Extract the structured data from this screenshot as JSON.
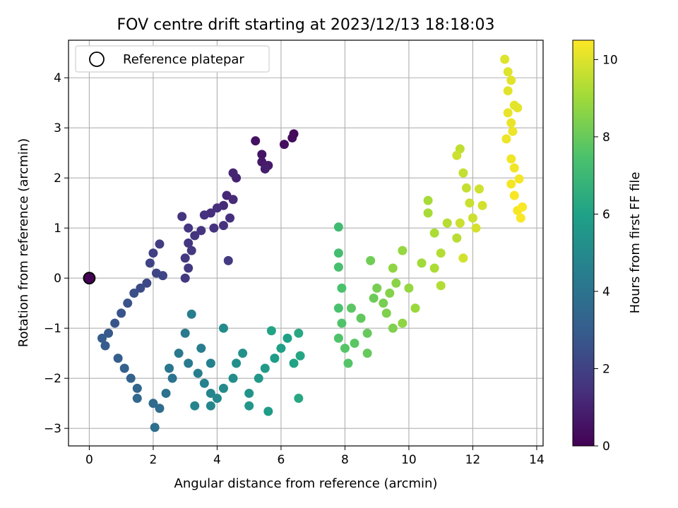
{
  "chart_data": {
    "type": "scatter",
    "title": "FOV centre drift starting at 2023/12/13 18:18:03",
    "xlabel": "Angular distance from reference (arcmin)",
    "ylabel": "Rotation from reference (arcmin)",
    "xlim": [
      -0.65,
      14.2
    ],
    "ylim": [
      -3.35,
      4.75
    ],
    "xticks": [
      0,
      2,
      4,
      6,
      8,
      10,
      12,
      14
    ],
    "yticks": [
      -3,
      -2,
      -1,
      0,
      1,
      2,
      3,
      4
    ],
    "grid": true,
    "colormap": "viridis",
    "colorbar": {
      "label": "Hours from first FF file",
      "range": [
        0,
        10.5
      ],
      "ticks": [
        0,
        2,
        4,
        6,
        8,
        10
      ]
    },
    "legend": {
      "position": "top-left",
      "entries": [
        "Reference platepar"
      ]
    },
    "reference_point": {
      "label": "Reference platepar",
      "x": 0,
      "y": 0
    },
    "series": [
      {
        "color_by": "hours",
        "points": [
          [
            0.0,
            0.0,
            0.1
          ],
          [
            6.4,
            2.88,
            0.2
          ],
          [
            6.35,
            2.8,
            0.3
          ],
          [
            6.1,
            2.67,
            0.4
          ],
          [
            5.2,
            2.74,
            0.5
          ],
          [
            5.4,
            2.47,
            0.6
          ],
          [
            5.4,
            2.32,
            0.7
          ],
          [
            5.6,
            2.25,
            0.8
          ],
          [
            5.5,
            2.18,
            0.9
          ],
          [
            4.6,
            2.0,
            1.0
          ],
          [
            4.5,
            2.1,
            1.1
          ],
          [
            4.3,
            1.65,
            1.2
          ],
          [
            4.5,
            1.57,
            1.3
          ],
          [
            4.2,
            1.45,
            1.3
          ],
          [
            4.0,
            1.4,
            1.4
          ],
          [
            3.8,
            1.3,
            1.4
          ],
          [
            4.4,
            1.2,
            1.45
          ],
          [
            4.2,
            1.05,
            1.5
          ],
          [
            3.6,
            1.26,
            1.5
          ],
          [
            3.9,
            1.0,
            1.55
          ],
          [
            3.5,
            0.95,
            1.6
          ],
          [
            3.3,
            0.85,
            1.6
          ],
          [
            3.1,
            0.7,
            1.65
          ],
          [
            3.2,
            0.55,
            1.7
          ],
          [
            3.0,
            0.4,
            1.7
          ],
          [
            3.1,
            0.2,
            1.75
          ],
          [
            3.0,
            0.0,
            1.8
          ],
          [
            2.9,
            1.23,
            1.6
          ],
          [
            3.1,
            1.0,
            1.65
          ],
          [
            4.35,
            0.35,
            1.8
          ],
          [
            2.2,
            0.68,
            1.9
          ],
          [
            2.0,
            0.5,
            2.0
          ],
          [
            1.9,
            0.3,
            2.1
          ],
          [
            2.1,
            0.1,
            2.2
          ],
          [
            2.3,
            0.05,
            2.2
          ],
          [
            1.8,
            -0.1,
            2.3
          ],
          [
            1.6,
            -0.2,
            2.4
          ],
          [
            1.4,
            -0.3,
            2.5
          ],
          [
            1.2,
            -0.5,
            2.6
          ],
          [
            1.0,
            -0.7,
            2.7
          ],
          [
            0.8,
            -0.9,
            2.8
          ],
          [
            0.6,
            -1.1,
            2.9
          ],
          [
            0.4,
            -1.2,
            3.0
          ],
          [
            0.5,
            -1.35,
            3.0
          ],
          [
            0.9,
            -1.6,
            3.1
          ],
          [
            1.1,
            -1.8,
            3.2
          ],
          [
            1.3,
            -2.0,
            3.3
          ],
          [
            1.5,
            -2.2,
            3.4
          ],
          [
            1.5,
            -2.4,
            3.5
          ],
          [
            2.0,
            -2.5,
            3.6
          ],
          [
            2.2,
            -2.6,
            3.7
          ],
          [
            2.05,
            -2.98,
            3.8
          ],
          [
            2.4,
            -2.3,
            3.9
          ],
          [
            2.6,
            -2.0,
            4.0
          ],
          [
            2.5,
            -1.8,
            4.1
          ],
          [
            2.8,
            -1.5,
            4.2
          ],
          [
            3.1,
            -1.7,
            4.3
          ],
          [
            3.0,
            -1.1,
            4.3
          ],
          [
            3.2,
            -0.72,
            4.4
          ],
          [
            3.4,
            -1.9,
            4.5
          ],
          [
            3.6,
            -2.1,
            4.6
          ],
          [
            3.8,
            -2.3,
            4.7
          ],
          [
            3.3,
            -2.55,
            4.7
          ],
          [
            3.8,
            -2.55,
            4.8
          ],
          [
            4.0,
            -2.4,
            4.9
          ],
          [
            4.2,
            -2.2,
            5.0
          ],
          [
            4.5,
            -2.0,
            5.1
          ],
          [
            4.6,
            -1.7,
            5.2
          ],
          [
            4.8,
            -1.5,
            5.3
          ],
          [
            5.0,
            -2.3,
            5.4
          ],
          [
            5.0,
            -2.55,
            5.5
          ],
          [
            5.3,
            -2.0,
            5.6
          ],
          [
            5.5,
            -1.8,
            5.7
          ],
          [
            5.6,
            -2.66,
            5.8
          ],
          [
            5.8,
            -1.6,
            5.8
          ],
          [
            6.0,
            -1.4,
            5.9
          ],
          [
            6.2,
            -1.2,
            6.0
          ],
          [
            6.4,
            -1.7,
            6.1
          ],
          [
            6.6,
            -1.55,
            6.2
          ],
          [
            6.55,
            -2.4,
            6.3
          ],
          [
            6.55,
            -1.1,
            6.3
          ],
          [
            5.7,
            -1.05,
            6.1
          ],
          [
            4.2,
            -1.0,
            5.0
          ],
          [
            3.8,
            -1.7,
            4.6
          ],
          [
            3.5,
            -1.4,
            4.4
          ],
          [
            7.8,
            1.02,
            7.2
          ],
          [
            7.8,
            0.5,
            7.3
          ],
          [
            7.8,
            0.22,
            7.4
          ],
          [
            7.9,
            -0.2,
            7.5
          ],
          [
            7.8,
            -0.6,
            7.5
          ],
          [
            7.9,
            -0.9,
            7.6
          ],
          [
            7.8,
            -1.2,
            7.6
          ],
          [
            8.0,
            -1.4,
            7.7
          ],
          [
            8.1,
            -1.7,
            7.7
          ],
          [
            8.3,
            -1.3,
            7.8
          ],
          [
            8.2,
            -0.6,
            7.8
          ],
          [
            8.5,
            -0.8,
            7.9
          ],
          [
            8.7,
            -1.1,
            8.0
          ],
          [
            8.7,
            -1.5,
            8.0
          ],
          [
            8.9,
            -0.4,
            8.1
          ],
          [
            8.8,
            0.35,
            8.2
          ],
          [
            9.0,
            -0.2,
            8.3
          ],
          [
            9.2,
            -0.5,
            8.3
          ],
          [
            9.3,
            -0.7,
            8.4
          ],
          [
            9.5,
            -1.0,
            8.4
          ],
          [
            9.4,
            -0.3,
            8.5
          ],
          [
            9.6,
            -0.1,
            8.6
          ],
          [
            9.5,
            0.2,
            8.7
          ],
          [
            9.8,
            0.55,
            8.8
          ],
          [
            10.0,
            -0.2,
            8.8
          ],
          [
            9.8,
            -0.9,
            8.7
          ],
          [
            10.2,
            -0.6,
            8.9
          ],
          [
            10.4,
            0.3,
            9.0
          ],
          [
            10.6,
            1.3,
            9.1
          ],
          [
            10.6,
            1.55,
            9.1
          ],
          [
            10.8,
            0.9,
            9.2
          ],
          [
            10.8,
            0.2,
            9.2
          ],
          [
            11.0,
            0.5,
            9.3
          ],
          [
            11.0,
            -0.15,
            9.3
          ],
          [
            11.2,
            1.1,
            9.35
          ],
          [
            11.5,
            0.8,
            9.4
          ],
          [
            11.6,
            2.58,
            9.5
          ],
          [
            11.7,
            2.1,
            9.55
          ],
          [
            11.8,
            1.8,
            9.6
          ],
          [
            11.9,
            1.5,
            9.65
          ],
          [
            12.0,
            1.2,
            9.7
          ],
          [
            12.2,
            1.78,
            9.75
          ],
          [
            12.3,
            1.45,
            9.8
          ],
          [
            11.7,
            0.4,
            9.8
          ],
          [
            12.1,
            1.0,
            9.85
          ],
          [
            11.6,
            1.1,
            9.7
          ],
          [
            11.5,
            2.45,
            9.7
          ],
          [
            13.0,
            4.37,
            10.0
          ],
          [
            13.1,
            4.12,
            10.0
          ],
          [
            13.2,
            3.95,
            10.05
          ],
          [
            13.1,
            3.74,
            10.05
          ],
          [
            13.3,
            3.45,
            10.1
          ],
          [
            13.4,
            3.4,
            10.1
          ],
          [
            13.1,
            3.3,
            10.15
          ],
          [
            13.2,
            3.1,
            10.2
          ],
          [
            13.25,
            2.93,
            10.25
          ],
          [
            13.05,
            2.78,
            10.25
          ],
          [
            13.2,
            2.38,
            10.3
          ],
          [
            13.3,
            2.2,
            10.3
          ],
          [
            13.2,
            1.88,
            10.35
          ],
          [
            13.45,
            1.98,
            10.35
          ],
          [
            13.3,
            1.65,
            10.4
          ],
          [
            13.4,
            1.35,
            10.4
          ],
          [
            13.5,
            1.2,
            10.45
          ],
          [
            13.55,
            1.42,
            10.45
          ]
        ]
      }
    ]
  }
}
